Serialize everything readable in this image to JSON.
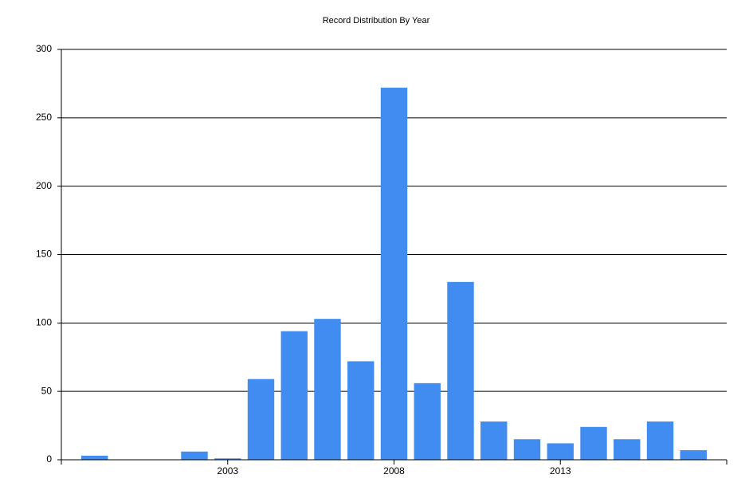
{
  "chart_data": {
    "type": "bar",
    "title": "Record Distribution By Year",
    "x": [
      1999,
      2002,
      2003,
      2004,
      2005,
      2006,
      2007,
      2008,
      2009,
      2010,
      2011,
      2012,
      2013,
      2014,
      2015,
      2016,
      2017
    ],
    "values": [
      3,
      6,
      1,
      59,
      94,
      103,
      72,
      272,
      56,
      130,
      28,
      15,
      12,
      24,
      15,
      28,
      7
    ],
    "color": "#418cf0",
    "xlim": [
      1998,
      2018
    ],
    "xticks": [
      2003,
      2008,
      2013
    ],
    "ylim": [
      0,
      300
    ],
    "yticks": [
      0,
      50,
      100,
      150,
      200,
      250,
      300
    ],
    "grid": true
  }
}
